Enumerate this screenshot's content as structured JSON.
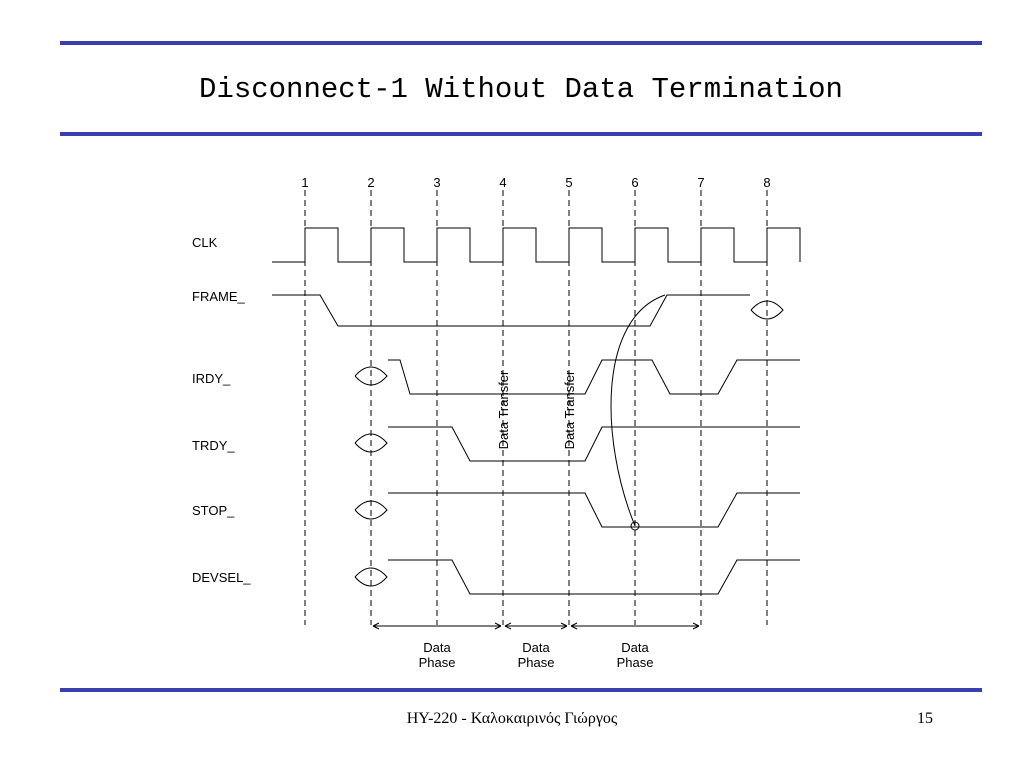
{
  "title": "Disconnect-1 Without Data Termination",
  "clocks": [
    "1",
    "2",
    "3",
    "4",
    "5",
    "6",
    "7",
    "8"
  ],
  "signals": [
    "CLK",
    "FRAME_",
    "IRDY_",
    "TRDY_",
    "STOP_",
    "DEVSEL_"
  ],
  "annotations": [
    "Data Transfer",
    "Data Transfer"
  ],
  "phases": [
    [
      "Data",
      "Phase"
    ],
    [
      "Data",
      "Phase"
    ],
    [
      "Data",
      "Phase"
    ]
  ],
  "footer": {
    "text": "HY-220 - Καλοκαιρινός Γιώργος",
    "page": "15"
  }
}
